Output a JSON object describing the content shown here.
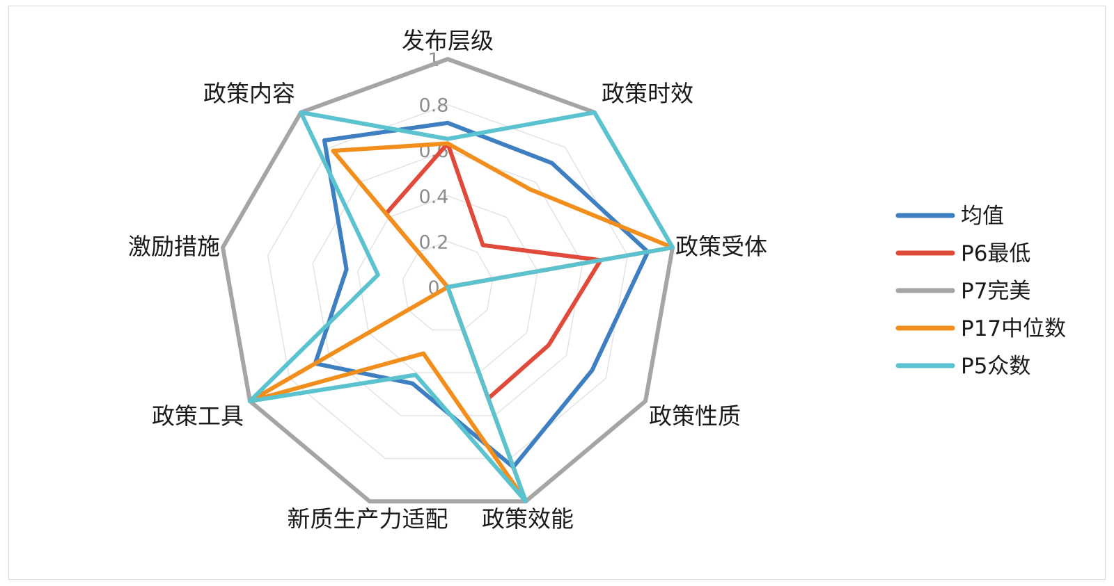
{
  "chart_data": {
    "type": "radar",
    "categories": [
      "发布层级",
      "政策时效",
      "政策受体",
      "政策性质",
      "政策效能",
      "新质生产力适配",
      "政策工具",
      "激励措施",
      "政策内容"
    ],
    "rlim": [
      0,
      1
    ],
    "ticks": [
      "0",
      "0.2",
      "0.4",
      "0.6",
      "0.8",
      "1"
    ],
    "grid": true,
    "legend_position": "right",
    "series": [
      {
        "name": "P7完美",
        "color": "#a5a5a5",
        "values": [
          1,
          1,
          1,
          1,
          1,
          1,
          1,
          1,
          1
        ]
      },
      {
        "name": "均值",
        "color": "#3d7fc0",
        "values": [
          0.72,
          0.71,
          0.89,
          0.73,
          0.84,
          0.45,
          0.67,
          0.45,
          0.84
        ]
      },
      {
        "name": "P6最低",
        "color": "#e04a3a",
        "values": [
          0.63,
          0.24,
          0.68,
          0.51,
          0.52,
          0.0,
          0.0,
          0.0,
          0.42
        ]
      },
      {
        "name": "P17中位数",
        "color": "#f28e1c",
        "values": [
          0.63,
          0.56,
          1,
          0.0,
          1,
          0.31,
          1,
          0.0,
          0.78
        ]
      },
      {
        "name": "P5众数",
        "color": "#5bc2d0",
        "values": [
          0.65,
          1,
          1,
          0.0,
          1,
          0.41,
          1,
          0.31,
          1
        ]
      }
    ]
  }
}
